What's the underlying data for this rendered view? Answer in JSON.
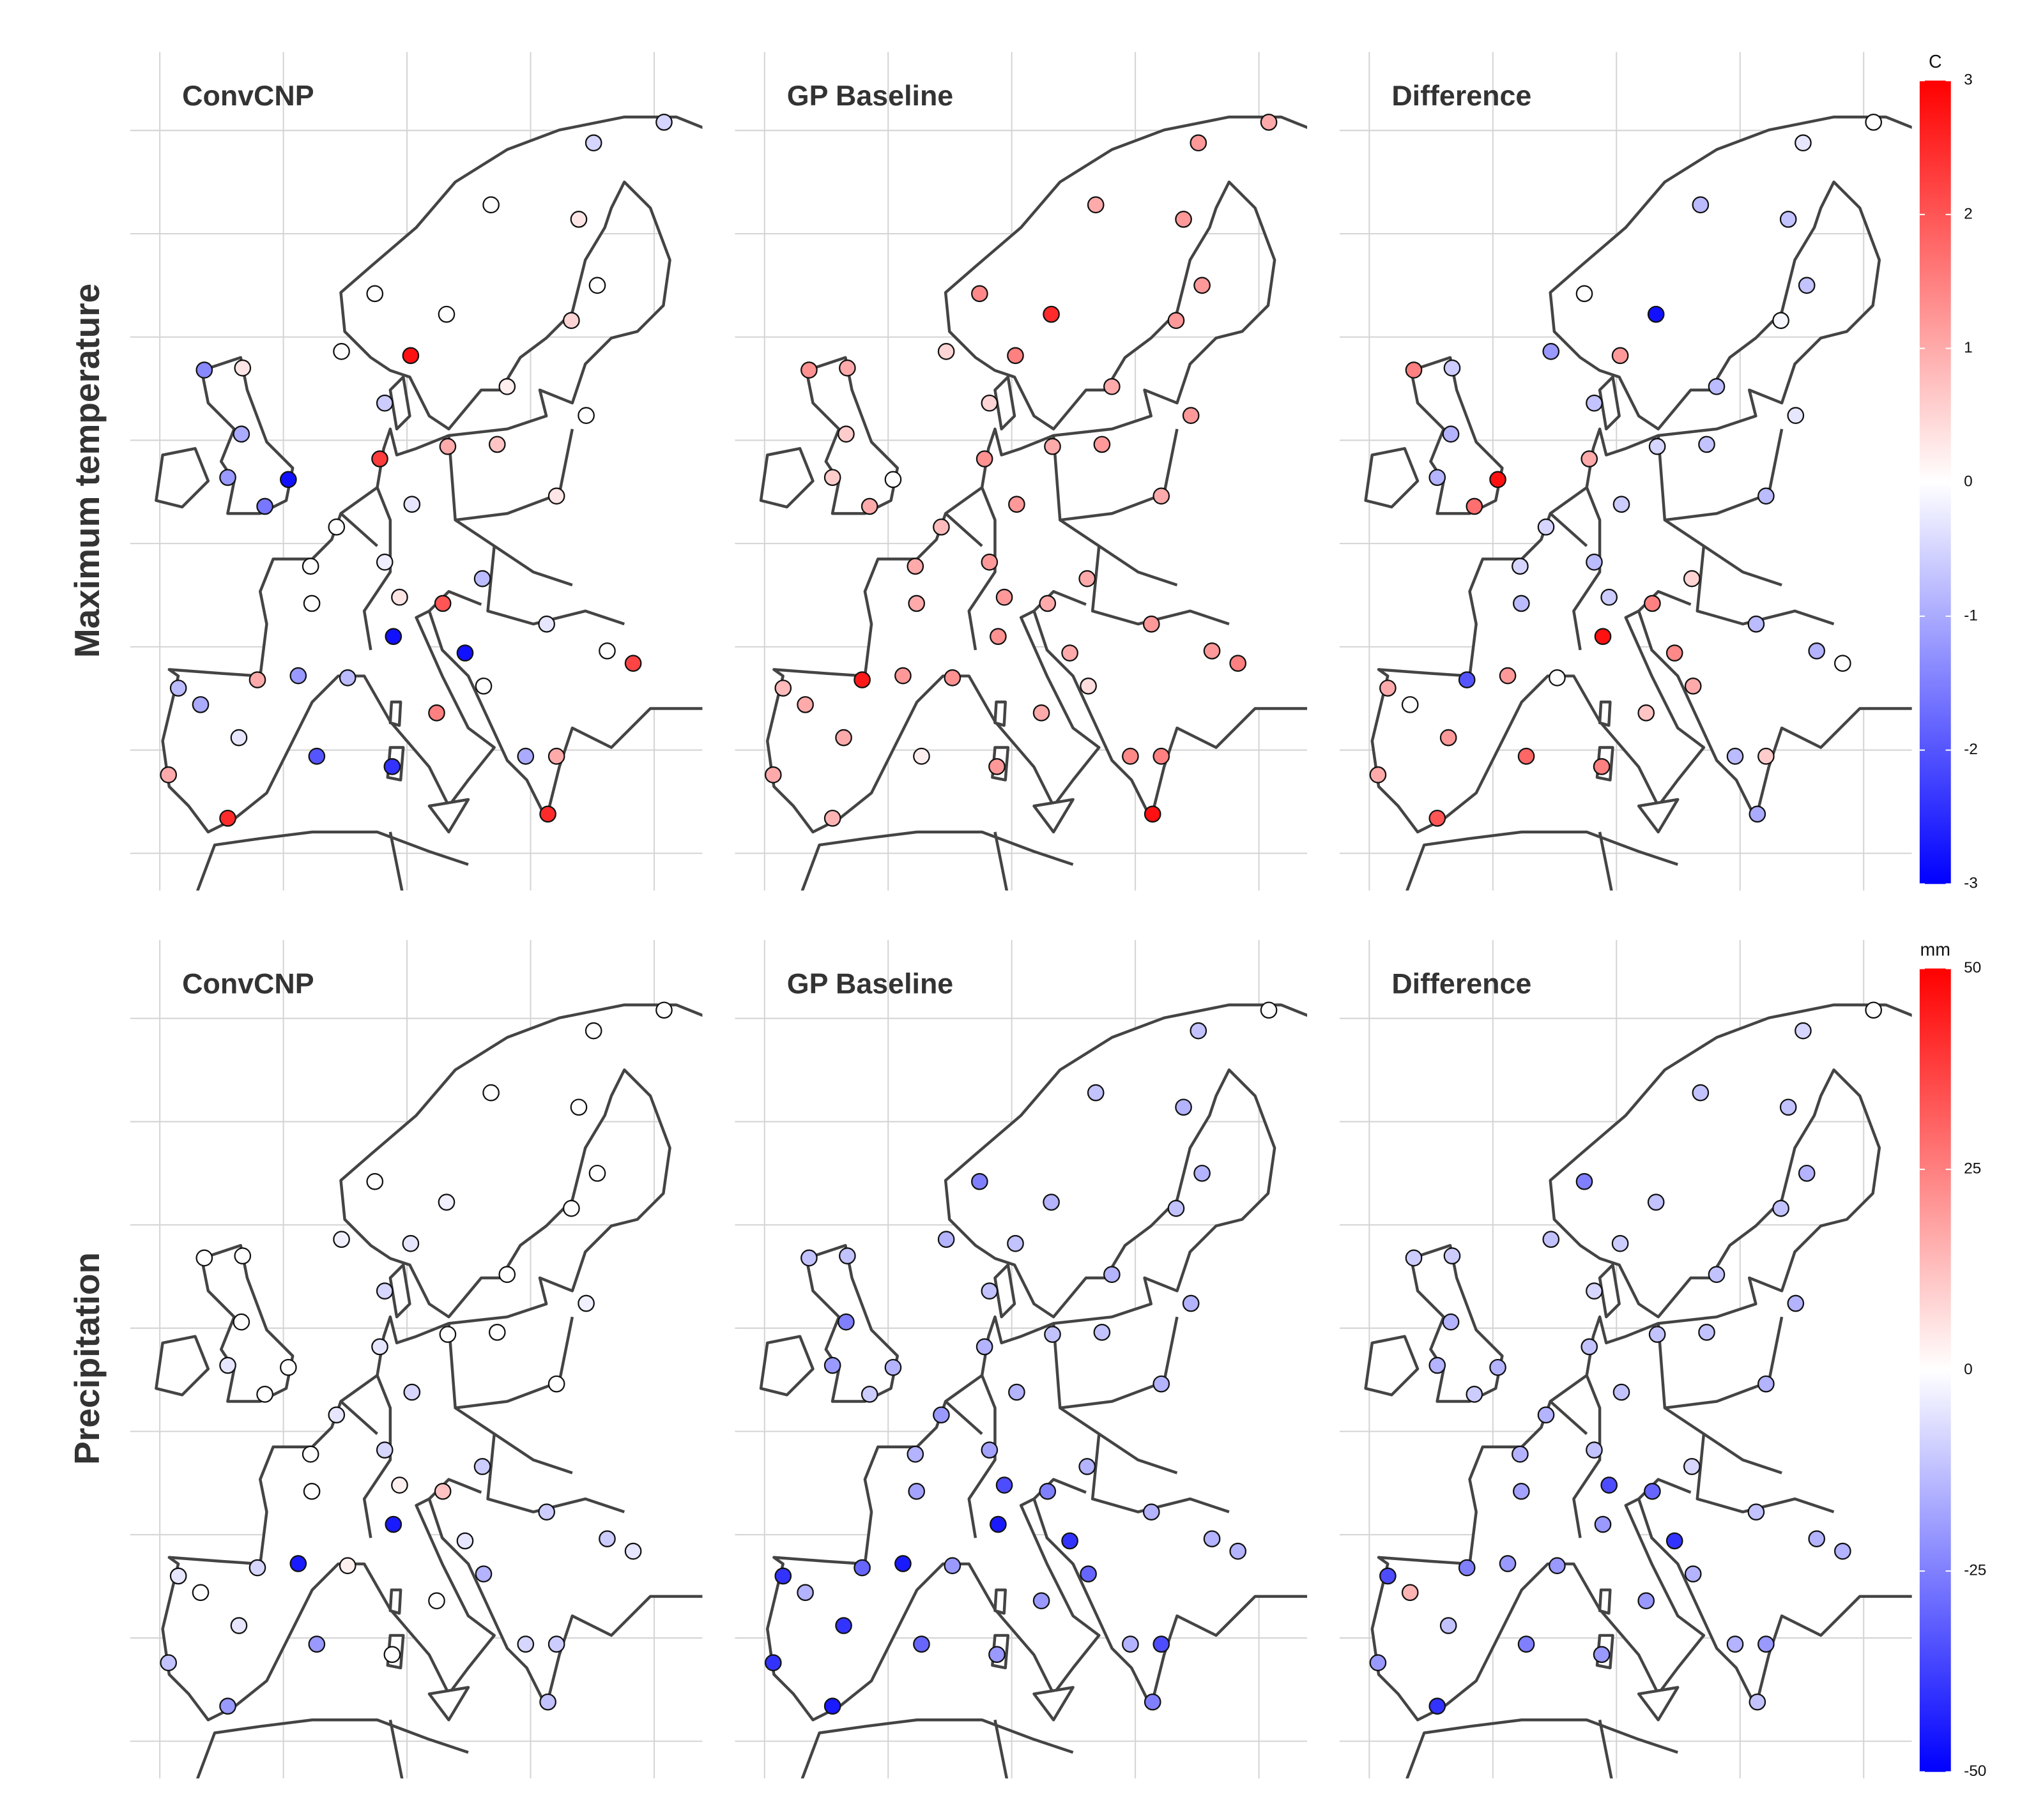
{
  "chart_data": [
    {
      "type": "map",
      "row_label": "Maximum temperature",
      "colorbar_title": "C",
      "clim": [
        -3,
        3
      ],
      "cticks": [
        3,
        2,
        1,
        0,
        -1,
        -2,
        -3
      ],
      "colors": [
        "#0000ff",
        "#ffffff",
        "#ff0000"
      ],
      "xlim": [
        -12.4,
        33.9
      ],
      "ylim": [
        33.2,
        73.8
      ],
      "xticks": [
        -10,
        0,
        10,
        20,
        30
      ],
      "yticks": [
        35,
        40,
        45,
        50,
        55,
        60,
        65,
        70
      ],
      "x": [
        30.8,
        25.1,
        16.8,
        23.9,
        25.4,
        23.3,
        13.2,
        7.4,
        4.7,
        10.3,
        8.2,
        18.1,
        24.5,
        -6.4,
        -3.3,
        -3.4,
        -4.5,
        0.4,
        -1.5,
        7.8,
        13.3,
        17.3,
        22.1,
        4.3,
        10.4,
        2.2,
        8.2,
        16.1,
        2.3,
        9.4,
        12.9,
        8.9,
        14.7,
        21.3,
        26.2,
        28.3,
        -8.5,
        -2.1,
        1.2,
        5.2,
        -6.7,
        -3.6,
        2.7,
        8.8,
        12.4,
        -9.3,
        -4.5,
        22.1,
        21.4,
        16.2,
        19.6
      ],
      "y": [
        70.4,
        69.4,
        66.4,
        65.7,
        62.5,
        60.8,
        61.1,
        62.1,
        59.3,
        59.1,
        56.8,
        57.6,
        56.2,
        58.4,
        58.5,
        55.3,
        53.2,
        53.1,
        51.8,
        54.1,
        54.7,
        54.8,
        52.3,
        50.8,
        51.9,
        48.9,
        49.1,
        48.3,
        47.1,
        47.4,
        47.1,
        45.5,
        44.7,
        46.1,
        44.8,
        44.2,
        43.0,
        43.4,
        43.6,
        43.5,
        42.2,
        40.6,
        39.7,
        39.2,
        41.8,
        38.8,
        36.7,
        39.7,
        36.9,
        43.1,
        39.7
      ],
      "panels": [
        {
          "title": "ConvCNP",
          "values": [
            -0.5,
            -0.5,
            0,
            0.3,
            0,
            0.5,
            0,
            0,
            0,
            2.8,
            -0.6,
            0.2,
            0,
            -1.4,
            0.3,
            -1,
            -1.2,
            -2.8,
            -1.6,
            2.3,
            1,
            0.7,
            0.3,
            0,
            -0.3,
            0,
            -0.2,
            -0.8,
            0,
            0.3,
            2,
            -2.8,
            -2.8,
            -0.3,
            0,
            2.2,
            -0.8,
            1,
            -1.2,
            -0.8,
            -1,
            -0.3,
            -2,
            -2.4,
            1.5,
            1,
            2.5,
            1,
            2.5,
            0,
            -1
          ]
        },
        {
          "title": "GP Baseline",
          "values": [
            1,
            1.2,
            1,
            1.2,
            1.2,
            1.2,
            2.5,
            1.4,
            0.5,
            1.5,
            0.5,
            1,
            1.2,
            1.3,
            1,
            0.6,
            0.6,
            0,
            1,
            1.3,
            1,
            1.2,
            1,
            0.8,
            1.2,
            1,
            1.2,
            1,
            1,
            1.2,
            1,
            1.3,
            1,
            1.2,
            1.2,
            1.5,
            0.8,
            2.7,
            1.2,
            1.3,
            1,
            1,
            0.2,
            1.2,
            1,
            1,
            0.9,
            1.5,
            2.8,
            0.4,
            1.4
          ]
        },
        {
          "title": "Difference",
          "values": [
            0,
            -0.3,
            -0.8,
            -0.7,
            -0.7,
            -0.1,
            -2.8,
            0,
            -1.2,
            1.2,
            -0.7,
            -0.8,
            -0.3,
            1.5,
            -0.6,
            -0.9,
            -0.9,
            2.8,
            1.7,
            1,
            -0.5,
            -0.7,
            -0.8,
            -0.5,
            -0.6,
            -0.5,
            -0.8,
            0.5,
            -0.8,
            -0.6,
            1.5,
            2.8,
            1.4,
            -0.8,
            -0.9,
            0,
            1,
            -2,
            1.2,
            0,
            0,
            1.2,
            1.8,
            1.5,
            0.7,
            1,
            2,
            0.6,
            -1,
            1,
            -0.8
          ]
        }
      ]
    },
    {
      "type": "map",
      "row_label": "Precipitation",
      "colorbar_title": "mm",
      "clim": [
        -50,
        50
      ],
      "cticks": [
        50,
        25,
        0,
        -25,
        -50
      ],
      "colors": [
        "#0000ff",
        "#ffffff",
        "#ff0000"
      ],
      "xlim": [
        -12.4,
        33.9
      ],
      "ylim": [
        33.2,
        73.8
      ],
      "xticks": [
        -10,
        0,
        10,
        20,
        30
      ],
      "yticks": [
        35,
        40,
        45,
        50,
        55,
        60,
        65,
        70
      ],
      "x": [
        30.8,
        25.1,
        16.8,
        23.9,
        25.4,
        23.3,
        13.2,
        7.4,
        4.7,
        10.3,
        8.2,
        18.1,
        24.5,
        -6.4,
        -3.3,
        -3.4,
        -4.5,
        0.4,
        -1.5,
        7.8,
        13.3,
        17.3,
        22.1,
        4.3,
        10.4,
        2.2,
        8.2,
        16.1,
        2.3,
        9.4,
        12.9,
        8.9,
        14.7,
        21.3,
        26.2,
        28.3,
        -8.5,
        -2.1,
        1.2,
        5.2,
        -6.7,
        -3.6,
        2.7,
        8.8,
        12.4,
        -9.3,
        -4.5,
        22.1,
        21.4,
        16.2,
        19.6
      ],
      "y": [
        70.4,
        69.4,
        66.4,
        65.7,
        62.5,
        60.8,
        61.1,
        62.1,
        59.3,
        59.1,
        56.8,
        57.6,
        56.2,
        58.4,
        58.5,
        55.3,
        53.2,
        53.1,
        51.8,
        54.1,
        54.7,
        54.8,
        52.3,
        50.8,
        51.9,
        48.9,
        49.1,
        48.3,
        47.1,
        47.4,
        47.1,
        45.5,
        44.7,
        46.1,
        44.8,
        44.2,
        43.0,
        43.4,
        43.6,
        43.5,
        42.2,
        40.6,
        39.7,
        39.2,
        41.8,
        38.8,
        36.7,
        39.7,
        36.9,
        43.1,
        39.7
      ],
      "panels": [
        {
          "title": "ConvCNP",
          "values": [
            0,
            0,
            0,
            0,
            0,
            0,
            -3,
            0,
            -3,
            -5,
            -8,
            0,
            -3,
            0,
            0,
            0,
            -5,
            0,
            0,
            -5,
            0,
            0,
            0,
            -5,
            -8,
            0,
            -8,
            -10,
            0,
            3,
            12,
            -45,
            -5,
            -10,
            -10,
            -5,
            -5,
            -8,
            -45,
            3,
            0,
            -5,
            -20,
            0,
            0,
            -12,
            -20,
            -10,
            -12,
            -15,
            -8
          ]
        },
        {
          "title": "GP Baseline",
          "values": [
            0,
            -12,
            -12,
            -15,
            -15,
            -12,
            -15,
            -25,
            -15,
            -12,
            -12,
            -15,
            -15,
            -12,
            -12,
            -25,
            -20,
            -15,
            -10,
            -15,
            -12,
            -12,
            -15,
            -20,
            -15,
            -15,
            -18,
            -15,
            -18,
            -35,
            -25,
            -45,
            -40,
            -15,
            -15,
            -15,
            -40,
            -30,
            -45,
            -20,
            -15,
            -40,
            -30,
            -20,
            -20,
            -40,
            -45,
            -35,
            -25,
            -30,
            -15
          ]
        },
        {
          "title": "Difference",
          "values": [
            0,
            -8,
            -12,
            -12,
            -15,
            -12,
            -12,
            -25,
            -12,
            -10,
            -8,
            -12,
            -15,
            -10,
            -10,
            -15,
            -15,
            -15,
            -10,
            -12,
            -12,
            -12,
            -15,
            -15,
            -12,
            -15,
            -12,
            -8,
            -18,
            -35,
            -30,
            -20,
            -40,
            -12,
            -15,
            -15,
            -35,
            -25,
            -20,
            -20,
            15,
            -12,
            -25,
            -20,
            -20,
            -20,
            -40,
            -20,
            -12,
            -15,
            -15
          ]
        }
      ]
    }
  ]
}
